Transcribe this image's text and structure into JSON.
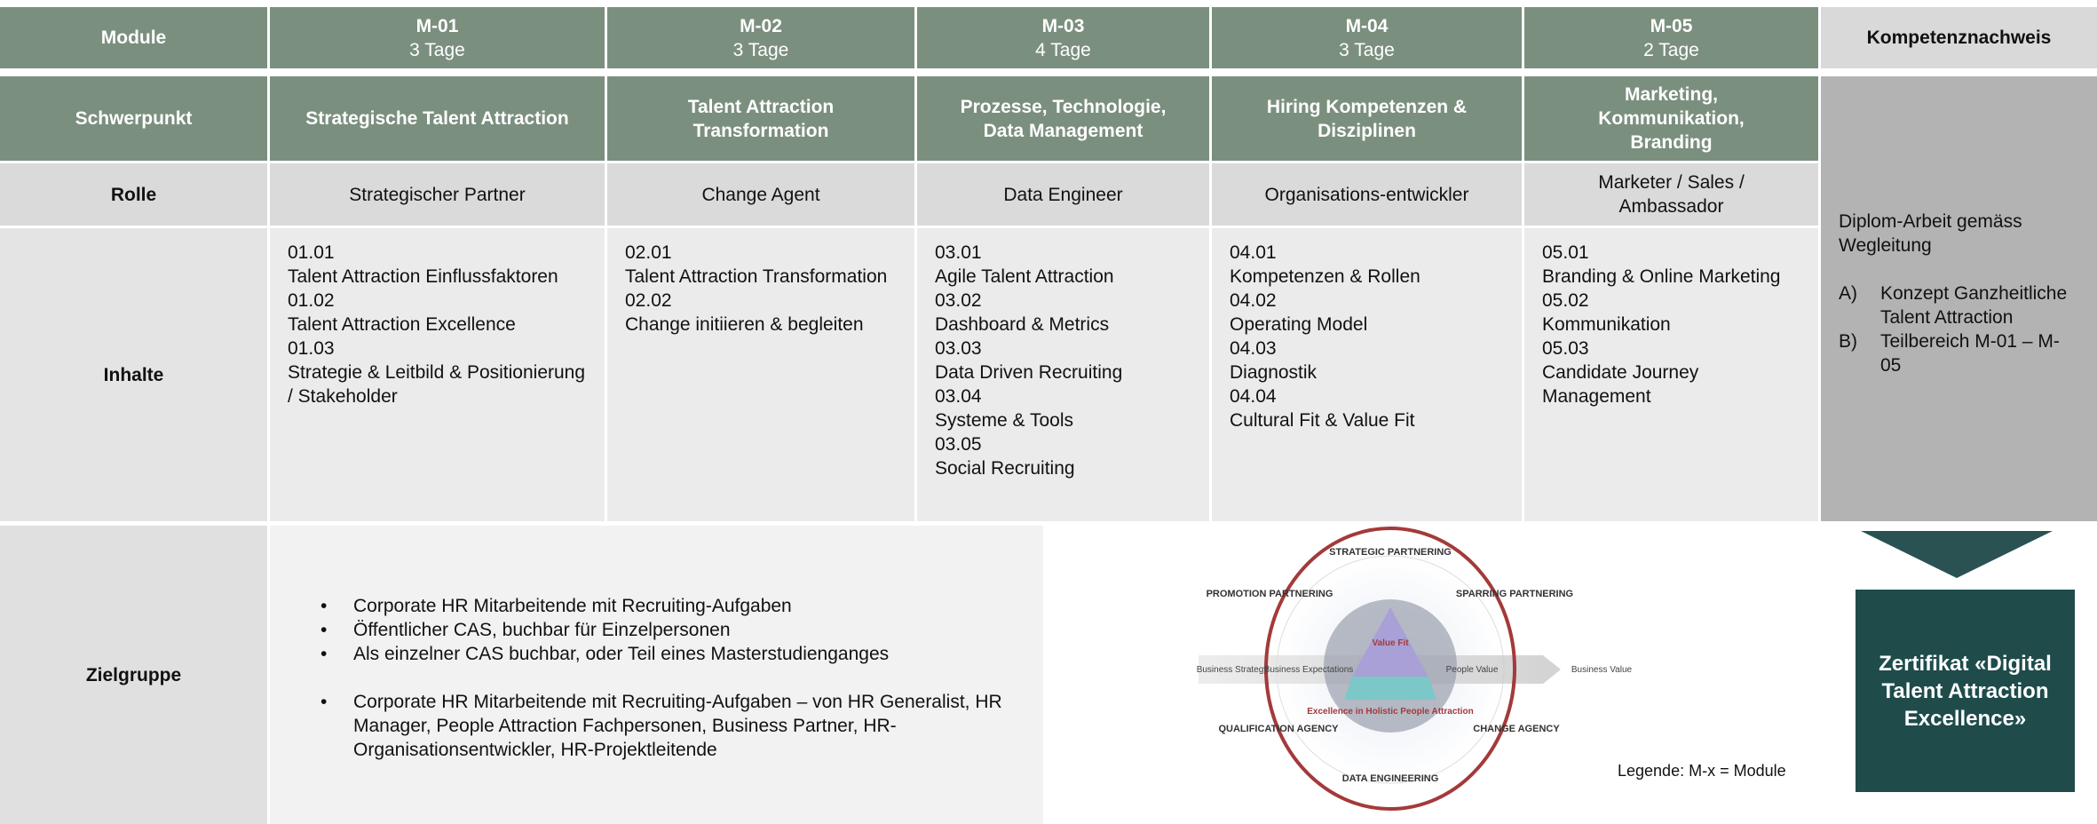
{
  "header": {
    "module_label": "Module",
    "proof_label": "Kompetenznachweis"
  },
  "row_labels": {
    "focus": "Schwerpunkt",
    "role": "Rolle",
    "contents": "Inhalte",
    "audience": "Zielgruppe"
  },
  "modules": [
    {
      "code": "M-01",
      "duration": "3 Tage",
      "focus": "Strategische Talent Attraction",
      "role": "Strategischer Partner",
      "contents": [
        {
          "code": "01.01",
          "title": "Talent Attraction Einflussfaktoren"
        },
        {
          "code": "01.02",
          "title": "Talent Attraction Excellence"
        },
        {
          "code": "01.03",
          "title": "Strategie & Leitbild & Positionierung / Stakeholder"
        }
      ]
    },
    {
      "code": "M-02",
      "duration": "3 Tage",
      "focus": "Talent Attraction Transformation",
      "role": "Change Agent",
      "contents": [
        {
          "code": "02.01",
          "title": "Talent Attraction Transformation"
        },
        {
          "code": "02.02",
          "title": "Change initiieren & begleiten"
        }
      ]
    },
    {
      "code": "M-03",
      "duration": "4 Tage",
      "focus": "Prozesse, Technologie, Data Management",
      "role": "Data Engineer",
      "contents": [
        {
          "code": "03.01",
          "title": "Agile Talent Attraction"
        },
        {
          "code": "03.02",
          "title": "Dashboard & Metrics"
        },
        {
          "code": "03.03",
          "title": "Data Driven Recruiting"
        },
        {
          "code": "03.04",
          "title": "Systeme & Tools"
        },
        {
          "code": "03.05",
          "title": "Social Recruiting"
        }
      ]
    },
    {
      "code": "M-04",
      "duration": "3 Tage",
      "focus": "Hiring Kompetenzen & Disziplinen",
      "role": "Organisations-entwickler",
      "contents": [
        {
          "code": "04.01",
          "title": "Kompetenzen & Rollen"
        },
        {
          "code": "04.02",
          "title": "Operating Model"
        },
        {
          "code": "04.03",
          "title": "Diagnostik"
        },
        {
          "code": "04.04",
          "title": "Cultural Fit & Value Fit"
        }
      ]
    },
    {
      "code": "M-05",
      "duration": "2 Tage",
      "focus": "Marketing, Kommunikation, Branding",
      "role": "Marketer / Sales / Ambassador",
      "contents": [
        {
          "code": "05.01",
          "title": "Branding & Online Marketing"
        },
        {
          "code": "05.02",
          "title": "Kommunikation"
        },
        {
          "code": "05.03",
          "title": "Candidate Journey Management"
        }
      ]
    }
  ],
  "proof": {
    "text": "Diplom-Arbeit gemäss Wegleitung",
    "items": [
      {
        "marker": "A)",
        "text": "Konzept Ganzheitliche Talent Attraction"
      },
      {
        "marker": "B)",
        "text": "Teilbereich M-01 – M-05"
      }
    ]
  },
  "audience": {
    "bullets_1": [
      "Corporate HR Mitarbeitende mit Recruiting-Aufgaben",
      "Öffentlicher CAS, buchbar für Einzelpersonen",
      "Als einzelner CAS buchbar, oder Teil eines Masterstudienganges"
    ],
    "bullets_2": [
      "Corporate HR Mitarbeitende mit Recruiting-Aufgaben – von HR Generalist, HR Manager, People Attraction Fachpersonen, Business Partner, HR-Organisationsentwickler, HR-Projektleitende"
    ]
  },
  "diagram": {
    "strategic": "STRATEGIC PARTNERING",
    "sparring": "SPARRING PARTNERING",
    "promotion": "PROMOTION PARTNERING",
    "qualification": "QUALIFICATION AGENCY",
    "change": "CHANGE AGENCY",
    "data": "DATA ENGINEERING",
    "business_strategy": "Business Strategy",
    "business_expectations": "Business Expectations",
    "people_value": "People Value",
    "business_value": "Business Value",
    "value_fit": "Value Fit",
    "excellence": "Excellence in Holistic People Attraction"
  },
  "legend": "Legende: M-x = Module",
  "certificate": "Zertifikat «Digital Talent Attraction Excellence»"
}
